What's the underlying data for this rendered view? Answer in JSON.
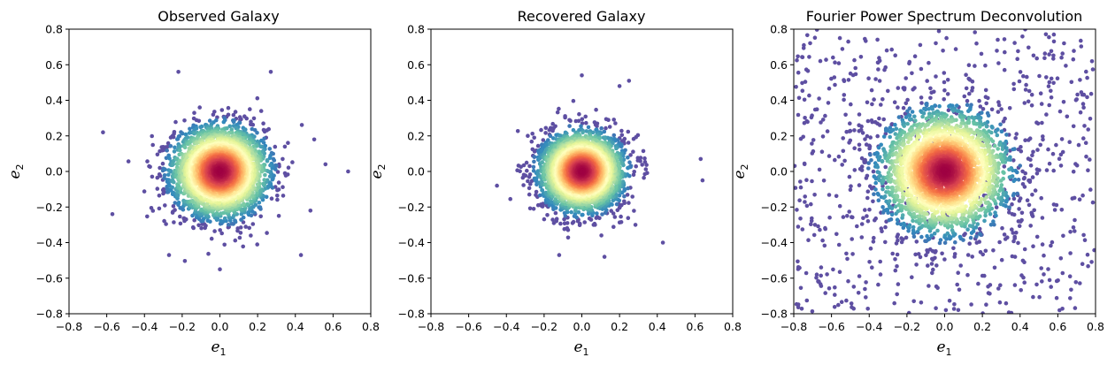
{
  "chart_data": [
    {
      "type": "scatter",
      "title": "Observed Galaxy",
      "xlabel": "e1",
      "ylabel": "e2",
      "xlim": [
        -0.8,
        0.8
      ],
      "ylim": [
        -0.8,
        0.8
      ],
      "xticks": [
        "−0.8",
        "−0.6",
        "−0.4",
        "−0.2",
        "0.0",
        "0.2",
        "0.4",
        "0.6",
        "0.8"
      ],
      "yticks": [
        "−0.8",
        "−0.6",
        "−0.4",
        "−0.2",
        "0.0",
        "0.2",
        "0.4",
        "0.6",
        "0.8"
      ],
      "grid": false,
      "color_map": "Spectral_r density",
      "point_color_low": "#5e4fa2",
      "point_color_high": "#9e0142",
      "distribution": {
        "center": [
          0.0,
          0.0
        ],
        "std": 0.12,
        "n_points": 3500
      },
      "outliers": [
        [
          -0.62,
          0.22
        ],
        [
          0.68,
          0.0
        ],
        [
          -0.57,
          -0.24
        ],
        [
          0.56,
          0.04
        ],
        [
          0.27,
          0.56
        ],
        [
          -0.22,
          0.56
        ],
        [
          0.43,
          -0.47
        ],
        [
          -0.27,
          -0.47
        ],
        [
          0.0,
          -0.55
        ],
        [
          0.5,
          0.18
        ],
        [
          0.48,
          -0.22
        ]
      ]
    },
    {
      "type": "scatter",
      "title": "Recovered Galaxy",
      "xlabel": "e1",
      "ylabel": "e2",
      "xlim": [
        -0.8,
        0.8
      ],
      "ylim": [
        -0.8,
        0.8
      ],
      "xticks": [
        "−0.8",
        "−0.6",
        "−0.4",
        "−0.2",
        "0.0",
        "0.2",
        "0.4",
        "0.6",
        "0.8"
      ],
      "yticks": [
        "−0.8",
        "−0.6",
        "−0.4",
        "−0.2",
        "0.0",
        "0.2",
        "0.4",
        "0.6",
        "0.8"
      ],
      "grid": false,
      "color_map": "Spectral_r density",
      "point_color_low": "#5e4fa2",
      "point_color_high": "#9e0142",
      "distribution": {
        "center": [
          0.0,
          0.0
        ],
        "std": 0.105,
        "n_points": 3500
      },
      "outliers": [
        [
          0.63,
          0.07
        ],
        [
          0.64,
          -0.05
        ],
        [
          0.0,
          0.54
        ],
        [
          0.25,
          0.51
        ],
        [
          0.43,
          -0.4
        ],
        [
          -0.45,
          -0.08
        ],
        [
          0.12,
          -0.48
        ],
        [
          -0.12,
          -0.47
        ],
        [
          0.2,
          0.48
        ]
      ]
    },
    {
      "type": "scatter",
      "title": "Fourier Power Spectrum Deconvolution",
      "xlabel": "e1",
      "ylabel": "e2",
      "xlim": [
        -0.8,
        0.8
      ],
      "ylim": [
        -0.8,
        0.8
      ],
      "xticks": [
        "−0.8",
        "−0.6",
        "−0.4",
        "−0.2",
        "0.0",
        "0.2",
        "0.4",
        "0.6",
        "0.8"
      ],
      "yticks": [
        "−0.8",
        "−0.6",
        "−0.4",
        "−0.2",
        "0.0",
        "0.2",
        "0.4",
        "0.6",
        "0.8"
      ],
      "grid": false,
      "color_map": "Spectral_r density",
      "point_color_low": "#5e4fa2",
      "point_color_high": "#9e0142",
      "distribution": {
        "center": [
          0.0,
          0.0
        ],
        "std": 0.16,
        "n_points": 3200,
        "background_uniform_points": 650
      },
      "outliers": []
    }
  ]
}
